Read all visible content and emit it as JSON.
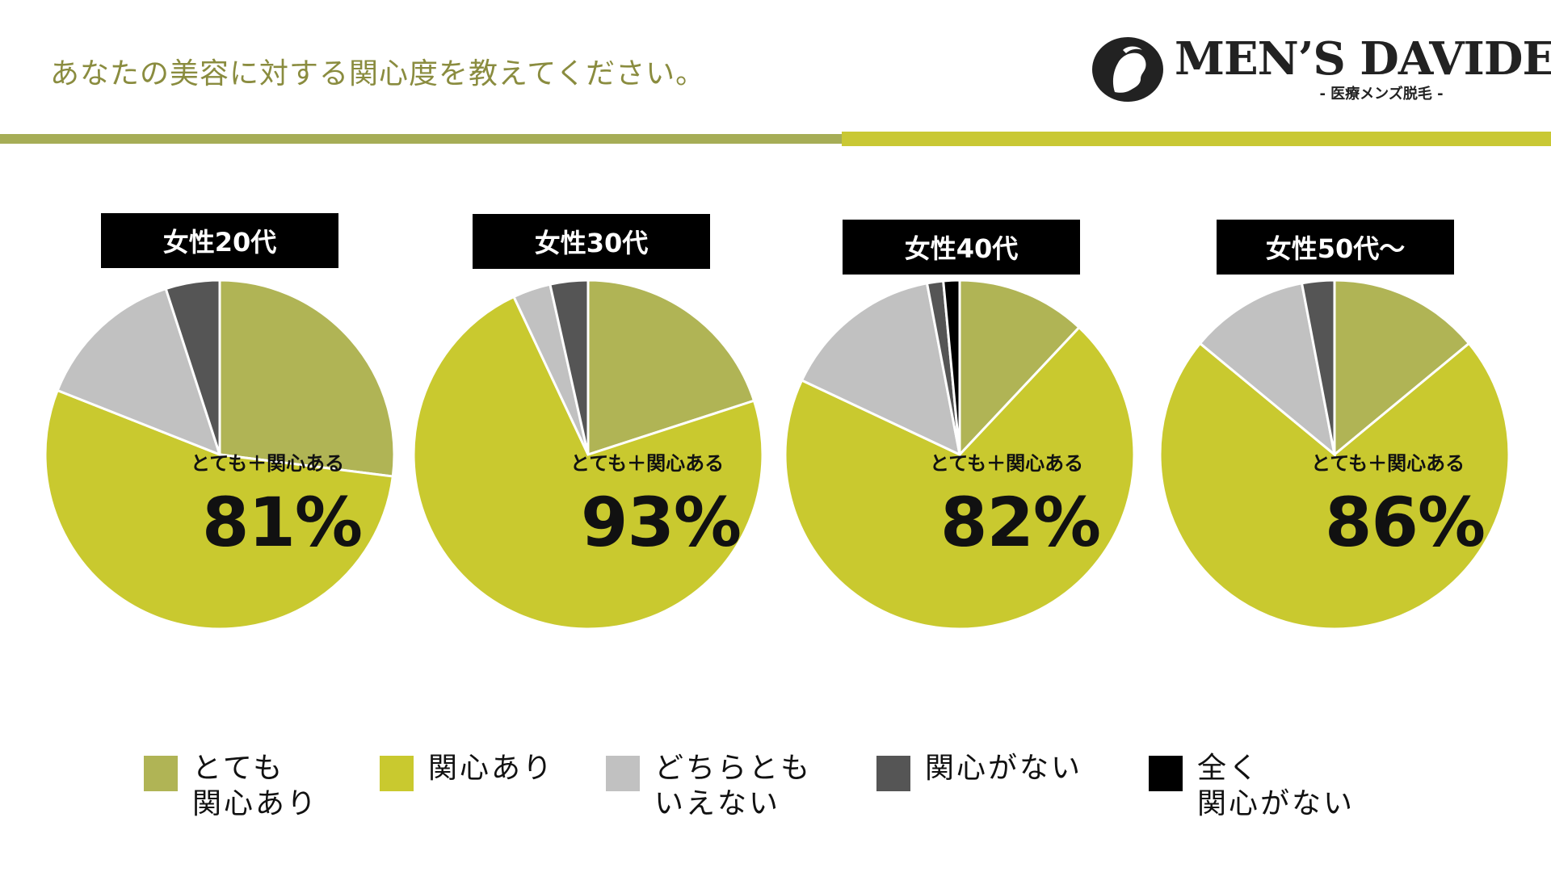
{
  "header": {
    "question": "あなたの美容に対する関心度を教えてください。",
    "logo_name": "MEN’S DAVIDE",
    "logo_sub": "- 医療メンズ脱毛 -"
  },
  "colors": {
    "very_interested": "#b0b455",
    "interested": "#c9c92f",
    "neutral": "#c1c1c1",
    "not_interested": "#555555",
    "not_at_all": "#000000",
    "accent_line_left": "#a6ad56",
    "accent_line_right": "#c9c834"
  },
  "legend": [
    {
      "label": "とても\n関心あり",
      "color": "#b0b455"
    },
    {
      "label": "関心あり",
      "color": "#c9c92f"
    },
    {
      "label": "どちらとも\nいえない",
      "color": "#c1c1c1"
    },
    {
      "label": "関心がない",
      "color": "#555555"
    },
    {
      "label": "全く\n関心がない",
      "color": "#000000"
    }
  ],
  "chart_data": [
    {
      "type": "pie",
      "title": "女性20代",
      "summary_label": "とても＋関心ある",
      "summary_value": "81%",
      "categories": [
        "とても関心あり",
        "関心あり",
        "どちらともいえない",
        "関心がない",
        "全く関心がない"
      ],
      "values": [
        27,
        54,
        14,
        5,
        0
      ]
    },
    {
      "type": "pie",
      "title": "女性30代",
      "summary_label": "とても＋関心ある",
      "summary_value": "93%",
      "categories": [
        "とても関心あり",
        "関心あり",
        "どちらともいえない",
        "関心がない",
        "全く関心がない"
      ],
      "values": [
        20,
        73,
        3.5,
        3.5,
        0
      ]
    },
    {
      "type": "pie",
      "title": "女性40代",
      "summary_label": "とても＋関心ある",
      "summary_value": "82%",
      "categories": [
        "とても関心あり",
        "関心あり",
        "どちらともいえない",
        "関心がない",
        "全く関心がない"
      ],
      "values": [
        12,
        70,
        15,
        1.5,
        1.5
      ]
    },
    {
      "type": "pie",
      "title": "女性50代～",
      "summary_label": "とても＋関心ある",
      "summary_value": "86%",
      "categories": [
        "とても関心あり",
        "関心あり",
        "どちらともいえない",
        "関心がない",
        "全く関心がない"
      ],
      "values": [
        14,
        72,
        11,
        3,
        0
      ]
    }
  ]
}
